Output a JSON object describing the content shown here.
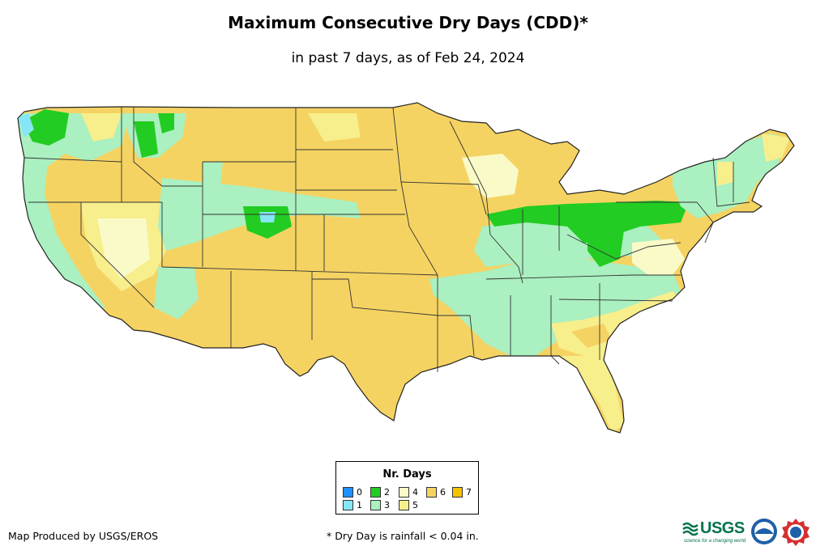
{
  "header": {
    "title": "Maximum Consecutive Dry Days (CDD)*",
    "subtitle": "in past 7 days, as of Feb 24, 2024"
  },
  "legend": {
    "title": "Nr. Days",
    "items": [
      {
        "label": "0",
        "color": "#1e90ff"
      },
      {
        "label": "1",
        "color": "#87e6f5"
      },
      {
        "label": "2",
        "color": "#22cc22"
      },
      {
        "label": "3",
        "color": "#aaf0c0"
      },
      {
        "label": "4",
        "color": "#fafac8"
      },
      {
        "label": "5",
        "color": "#f7ee8c"
      },
      {
        "label": "6",
        "color": "#f5d362"
      },
      {
        "label": "7",
        "color": "#f4c400"
      }
    ]
  },
  "footer": {
    "credit": "Map Produced by USGS/EROS",
    "footnote": "* Dry Day is rainfall < 0.04 in."
  },
  "logos": {
    "usgs": "USGS",
    "usgs_tagline": "science for a changing world",
    "noaa": "noaa-logo",
    "nws": "nws-logo"
  }
}
